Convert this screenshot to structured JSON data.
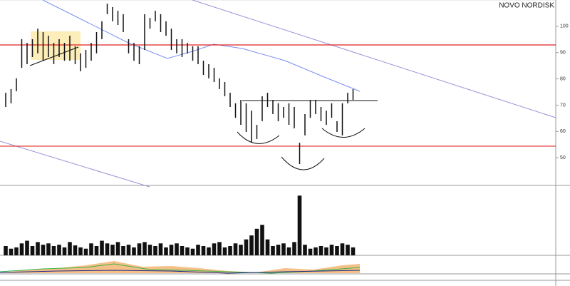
{
  "chart_data": [
    {
      "type": "ohlc",
      "title": "NOVO NORDISK",
      "categories": [
        null,
        null,
        null,
        null,
        null,
        null,
        null,
        null,
        null,
        null,
        null,
        null,
        null,
        null,
        null,
        null,
        null,
        null,
        null,
        null,
        null,
        null,
        null,
        null,
        null,
        null,
        null,
        null,
        null,
        null,
        null,
        null,
        null,
        null,
        null,
        null,
        null,
        null,
        null,
        null,
        null,
        null,
        null,
        null,
        null,
        null,
        null,
        null,
        null,
        null,
        null,
        null,
        null,
        null,
        null,
        null,
        null,
        null,
        null,
        null,
        null,
        null,
        null,
        null,
        null,
        null
      ],
      "high": [
        74.7,
        76.1,
        80.2,
        95.1,
        93.7,
        95.1,
        99.1,
        97.8,
        96.4,
        93.7,
        95.1,
        93.7,
        96.4,
        92.4,
        89.7,
        91.0,
        93.7,
        97.8,
        101.9,
        108.6,
        107.3,
        105.9,
        104.6,
        95.1,
        93.7,
        92.4,
        104.6,
        103.2,
        105.9,
        104.6,
        101.9,
        99.1,
        95.1,
        95.1,
        93.7,
        92.4,
        92.4,
        86.9,
        85.6,
        84.2,
        80.2,
        78.8,
        74.7,
        70.7,
        72.0,
        70.7,
        67.9,
        62.5,
        73.4,
        74.7,
        72.0,
        70.7,
        69.3,
        70.7,
        69.3,
        55.7,
        66.6,
        72.0,
        72.0,
        69.3,
        67.9,
        70.7,
        63.9,
        70.7,
        74.7,
        76.1
      ],
      "low": [
        69.3,
        70.7,
        75.3,
        84.2,
        85.6,
        88.3,
        89.7,
        86.9,
        88.3,
        85.6,
        88.3,
        86.9,
        86.9,
        85.6,
        82.9,
        84.2,
        86.9,
        89.7,
        95.1,
        104.6,
        101.9,
        100.5,
        97.8,
        89.7,
        86.9,
        85.6,
        91.0,
        99.1,
        101.9,
        97.8,
        96.4,
        91.0,
        89.7,
        88.3,
        89.7,
        86.9,
        85.6,
        81.5,
        80.2,
        78.8,
        76.1,
        73.4,
        69.3,
        65.2,
        62.5,
        59.8,
        55.7,
        57.1,
        63.9,
        69.3,
        66.6,
        63.9,
        65.2,
        62.5,
        61.2,
        47.6,
        58.5,
        65.2,
        66.6,
        63.9,
        62.5,
        65.2,
        59.8,
        58.5,
        70.7,
        72.0
      ],
      "color": "#111111",
      "ylim": [
        40,
        110
      ],
      "yticks": [
        50,
        60,
        70,
        80,
        90,
        100
      ],
      "hlines": {
        "values": [
          92.9,
          54.4
        ],
        "color": "#e02020"
      }
    },
    {
      "type": "bar",
      "values": [
        14,
        10,
        12,
        18,
        22,
        14,
        20,
        16,
        18,
        14,
        16,
        12,
        20,
        15,
        12,
        10,
        18,
        14,
        22,
        18,
        16,
        20,
        14,
        16,
        12,
        18,
        20,
        16,
        14,
        18,
        12,
        16,
        18,
        14,
        12,
        10,
        16,
        14,
        12,
        18,
        20,
        12,
        14,
        18,
        16,
        24,
        30,
        40,
        46,
        24,
        14,
        16,
        18,
        12,
        20,
        90,
        16,
        10,
        12,
        14,
        12,
        16,
        14,
        18,
        16,
        12
      ],
      "color": "#111111",
      "ylim": [
        0,
        100
      ]
    }
  ]
}
